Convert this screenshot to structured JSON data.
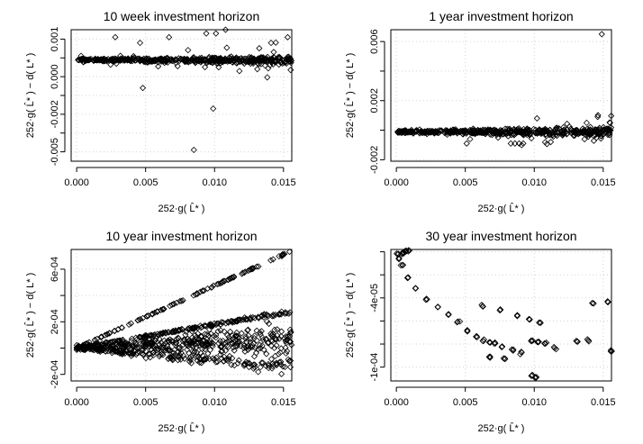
{
  "chart_data": [
    {
      "type": "scatter",
      "title": "10 week investment horizon",
      "xlabel": "252·g( L̂* )",
      "ylabel": "252·g( L̂* ) − d( L* )",
      "xlim": [
        -0.0004,
        0.0156
      ],
      "ylim": [
        -0.0055,
        0.0015
      ],
      "xticks": [
        0,
        0.005,
        0.01,
        0.015
      ],
      "xtick_labels": [
        "0.000",
        "0.005",
        "0.010",
        "0.015"
      ],
      "yticks": [
        -0.005,
        -0.004,
        -0.003,
        -0.002,
        -0.001,
        0,
        0.001
      ],
      "ytick_labels": [
        "-0.005",
        "",
        "-0.002",
        "",
        "0.000",
        "",
        "0.001"
      ],
      "pattern": "band",
      "band": {
        "center": [
          -0.0001,
          -0.00015
        ],
        "spread": 0.00012
      },
      "outliers": [
        [
          0.0028,
          0.0011
        ],
        [
          0.0046,
          0.0008
        ],
        [
          0.0067,
          0.0011
        ],
        [
          0.0094,
          0.0013
        ],
        [
          0.0101,
          0.0013
        ],
        [
          0.0108,
          0.0015
        ],
        [
          0.0141,
          0.0008
        ],
        [
          0.0153,
          0.0011
        ],
        [
          0.0048,
          -0.0016
        ],
        [
          0.0099,
          -0.0027
        ],
        [
          0.0085,
          -0.0049
        ],
        [
          0.0103,
          -0.0005
        ],
        [
          0.0118,
          -0.0007
        ],
        [
          0.0131,
          -0.0006
        ]
      ]
    },
    {
      "type": "scatter",
      "title": "1 year investment horizon",
      "xlabel": "252·g( L̂* )",
      "ylabel": "252·g( L̂* ) − d( L* )",
      "xlim": [
        -0.0004,
        0.0156
      ],
      "ylim": [
        -0.0021,
        0.0068
      ],
      "xticks": [
        0,
        0.005,
        0.01,
        0.015
      ],
      "xtick_labels": [
        "0.000",
        "0.005",
        "0.010",
        "0.015"
      ],
      "yticks": [
        -0.002,
        0,
        0.002,
        0.004,
        0.006
      ],
      "ytick_labels": [
        "-0.002",
        "",
        "0.002",
        "",
        "0.006"
      ],
      "pattern": "band",
      "band": {
        "center": [
          -0.0001,
          -0.00012
        ],
        "spread": 0.0002
      },
      "outliers": [
        [
          0.0149,
          0.0065
        ],
        [
          0.0138,
          0.0005
        ],
        [
          0.0146,
          0.0009
        ],
        [
          0.0102,
          0.0008
        ],
        [
          0.0155,
          0.0005
        ],
        [
          0.0083,
          -0.0009
        ],
        [
          0.0086,
          -0.0009
        ],
        [
          0.0089,
          -0.0009
        ],
        [
          0.0092,
          -0.0009
        ],
        [
          0.0051,
          -0.0009
        ],
        [
          0.0112,
          -0.0008
        ]
      ]
    },
    {
      "type": "scatter",
      "title": "10 year investment horizon",
      "xlabel": "252·g( L̂* )",
      "ylabel": "252·g( L̂* ) − d( L* )",
      "xlim": [
        -0.0004,
        0.0156
      ],
      "ylim": [
        -0.00025,
        0.00075
      ],
      "xticks": [
        0,
        0.005,
        0.01,
        0.015
      ],
      "xtick_labels": [
        "0.000",
        "0.005",
        "0.010",
        "0.015"
      ],
      "yticks": [
        -0.0002,
        0,
        0.0002,
        0.0004,
        0.0006
      ],
      "ytick_labels": [
        "-2e-04",
        "",
        "2e-04",
        "",
        "6e-04"
      ],
      "pattern": "fans",
      "fans": [
        {
          "x_end": 0.0156,
          "y_end": 0.00074,
          "spread": 4e-06,
          "n": 110
        },
        {
          "x_end": 0.0156,
          "y_end": 0.00028,
          "spread": 1e-05,
          "n": 170
        },
        {
          "x_end": 0.0156,
          "y_end": 0.00012,
          "spread": 6e-05,
          "n": 190
        },
        {
          "x_end": 0.0156,
          "y_end": 1e-05,
          "spread": 7e-05,
          "n": 220
        },
        {
          "x_end": 0.0156,
          "y_end": -0.00015,
          "spread": 3e-05,
          "n": 150
        }
      ]
    },
    {
      "type": "scatter",
      "title": "30 year investment horizon",
      "xlabel": "252·g( L̂* )",
      "ylabel": "252·g( L̂* ) − d( L* )",
      "xlim": [
        -0.0004,
        0.0156
      ],
      "ylim": [
        -0.000112,
        2e-06
      ],
      "xticks": [
        0,
        0.005,
        0.01,
        0.015
      ],
      "xtick_labels": [
        "0.000",
        "0.005",
        "0.010",
        "0.015"
      ],
      "yticks": [
        -0.0001,
        -8e-05,
        -6e-05,
        -4e-05,
        -2e-05,
        0
      ],
      "ytick_labels": [
        "-1e-04",
        "",
        "",
        "-4e-05",
        "",
        ""
      ],
      "pattern": "curves",
      "curves": [
        [
          [
            0.0005,
            -5e-07
          ],
          [
            0.0005,
            -2e-06
          ],
          [
            0.0007,
            5e-07
          ],
          [
            0.0009,
            0
          ],
          [
            0.0001,
            -2e-06
          ],
          [
            0.0002,
            -6e-06
          ],
          [
            0.0004,
            -1.2e-05
          ],
          [
            0.0008,
            -2.2e-05
          ],
          [
            0.0014,
            -3.2e-05
          ],
          [
            0.0022,
            -4.1e-05
          ],
          [
            0.003,
            -4.8e-05
          ],
          [
            0.0038,
            -5.4e-05
          ],
          [
            0.0045,
            -6.1e-05
          ],
          [
            0.0052,
            -6.8e-05
          ],
          [
            0.0058,
            -7.4e-05
          ],
          [
            0.0063,
            -7.7e-05
          ],
          [
            0.0068,
            -7.9e-05
          ],
          [
            0.0071,
            -7.9e-05
          ]
        ],
        [
          [
            0.0062,
            -4.7e-05
          ],
          [
            0.0075,
            -5e-05
          ],
          [
            0.0088,
            -5.5e-05
          ],
          [
            0.0096,
            -5.8e-05
          ],
          [
            0.0104,
            -6.1e-05
          ]
        ],
        [
          [
            0.0098,
            -7.7e-05
          ],
          [
            0.0103,
            -7.9e-05
          ],
          [
            0.0108,
            -7.9e-05
          ],
          [
            0.0115,
            -8.4e-05
          ]
        ],
        [
          [
            0.0077,
            -8.2e-05
          ],
          [
            0.0084,
            -8.5e-05
          ],
          [
            0.0091,
            -8.8e-05
          ]
        ],
        [
          [
            0.0068,
            -9.1e-05
          ],
          [
            0.0078,
            -9.3e-05
          ]
        ],
        [
          [
            0.0098,
            -0.000107
          ],
          [
            0.0101,
            -0.000109
          ]
        ],
        [
          [
            0.0143,
            -4.4e-05
          ],
          [
            0.0153,
            -4.3e-05
          ],
          [
            0.0131,
            -7.8e-05
          ],
          [
            0.0139,
            -7.7e-05
          ],
          [
            0.0156,
            -8.6e-05
          ]
        ]
      ]
    }
  ]
}
